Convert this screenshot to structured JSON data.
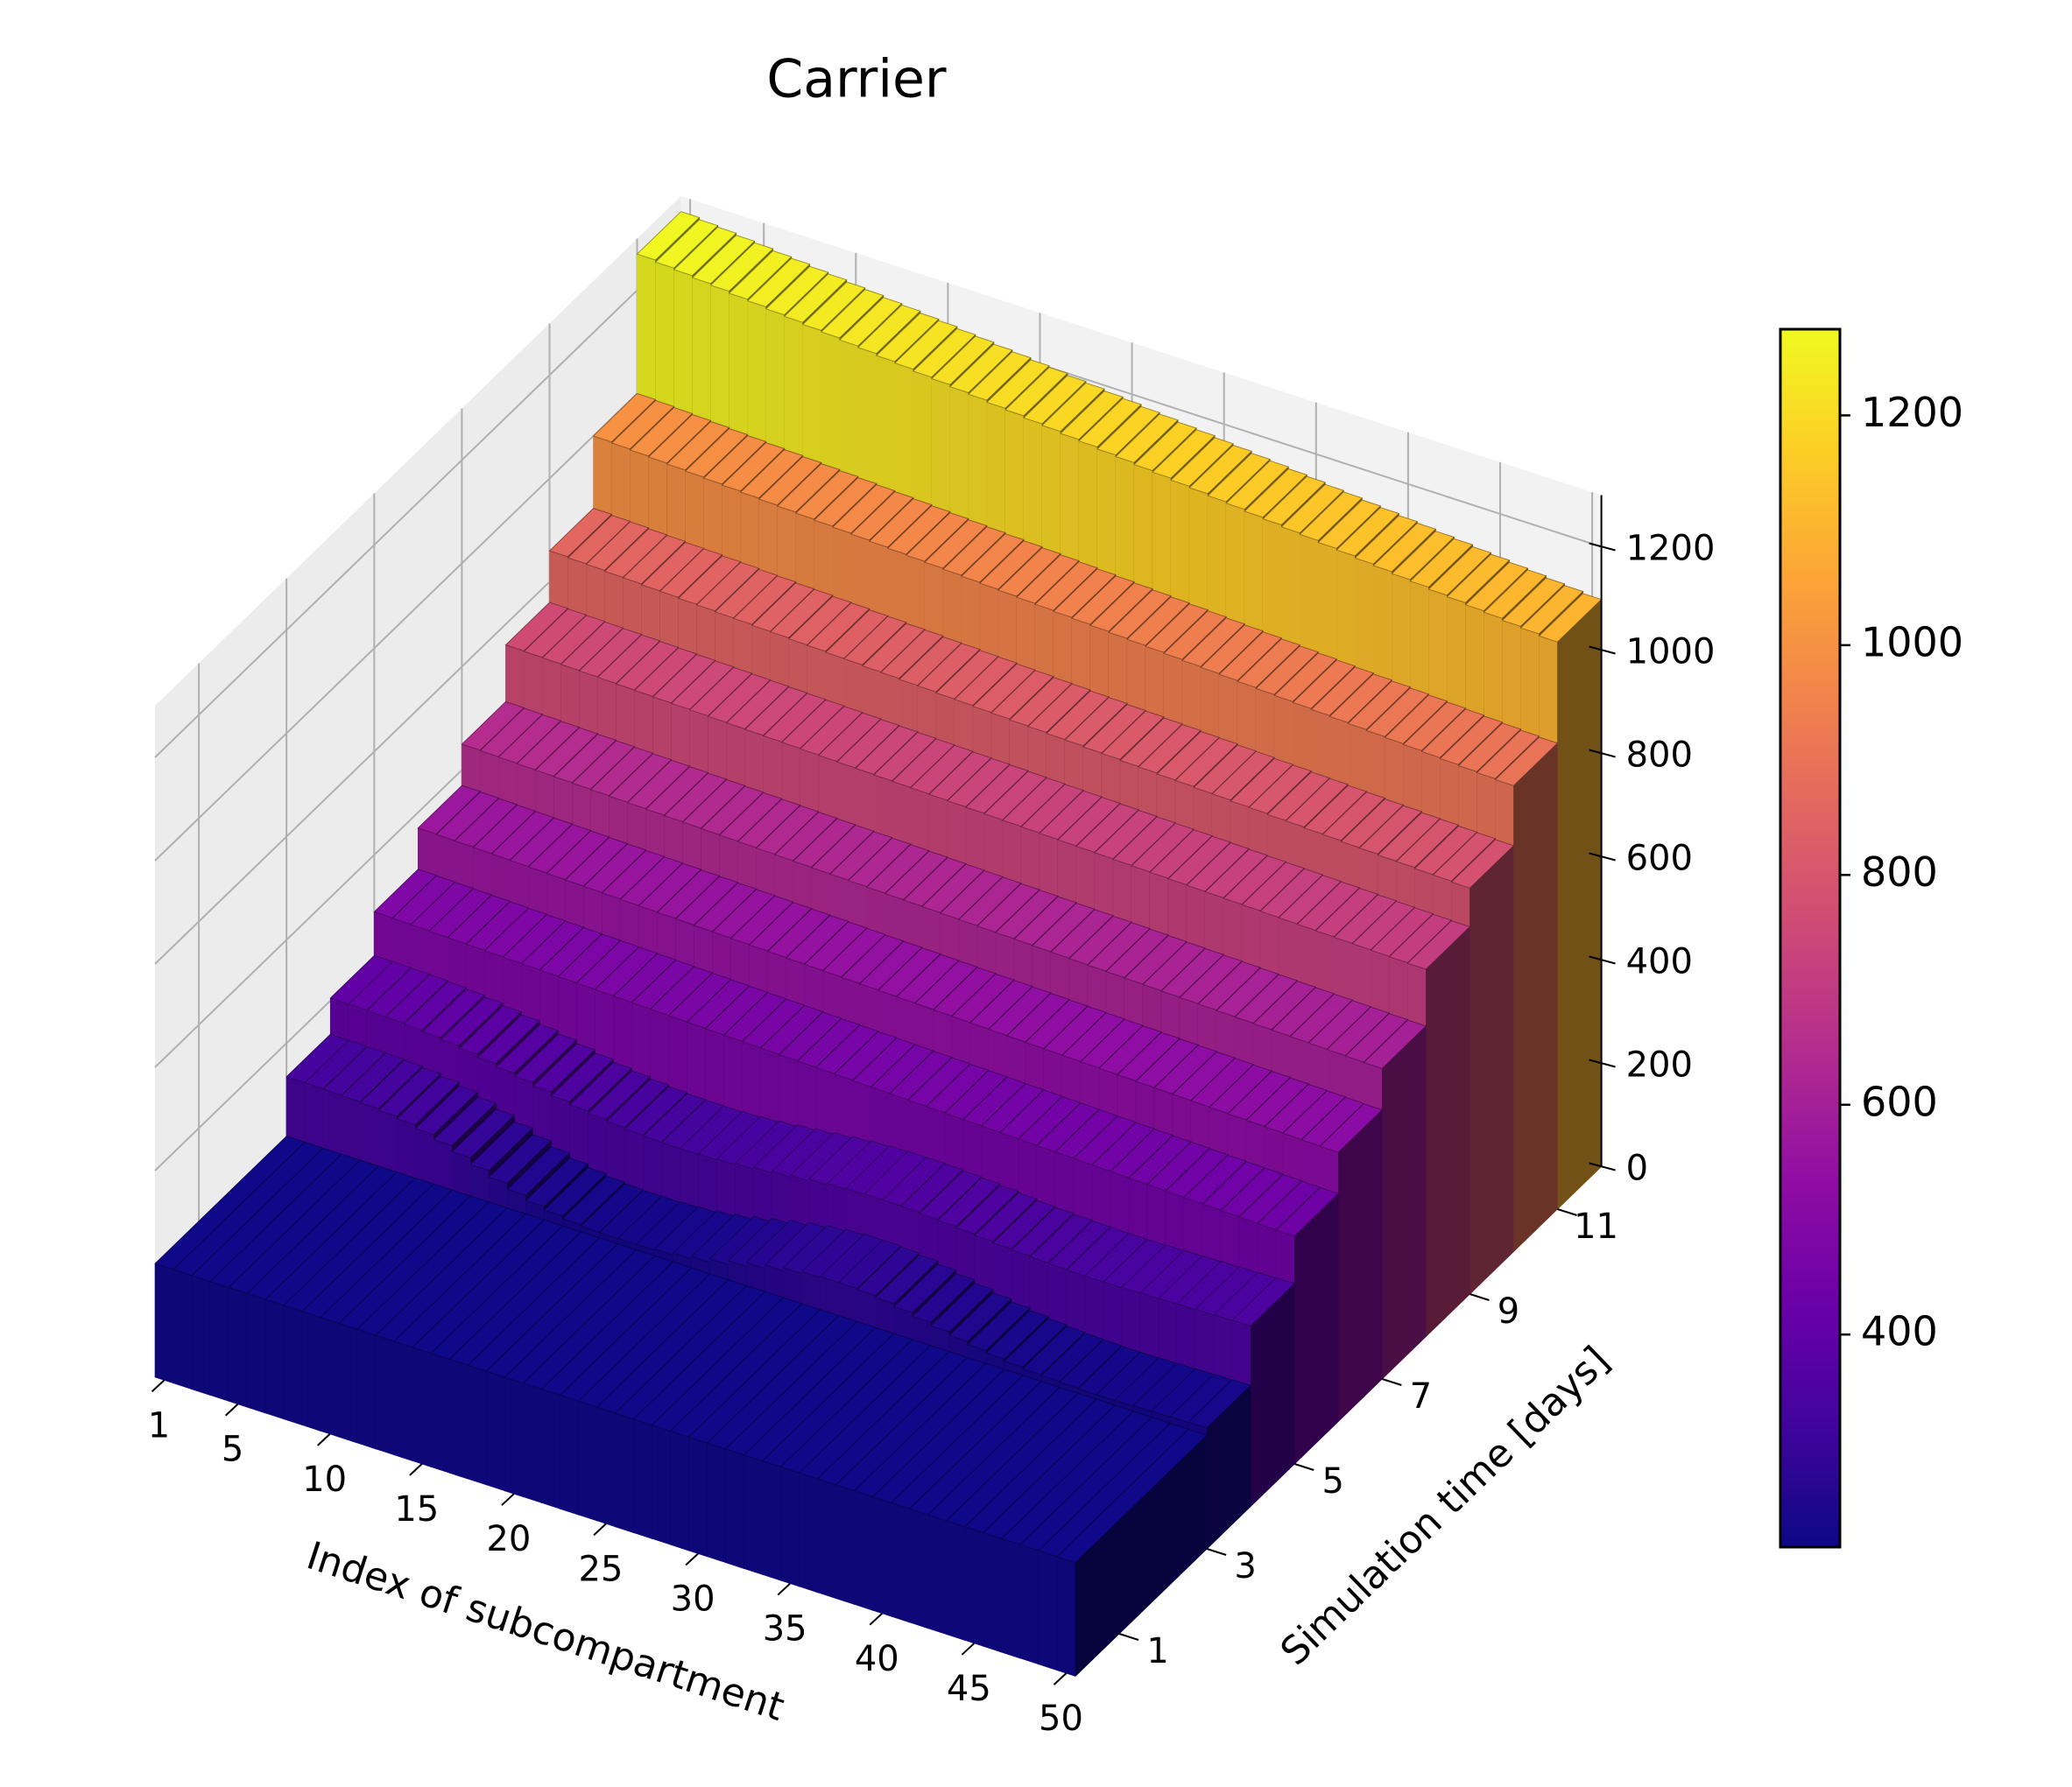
{
  "chart_data": {
    "type": "bar3d",
    "title": "Carrier",
    "x_label": "Index of subcompartment",
    "y_label": "Simulation time [days]",
    "x": [
      1,
      2,
      3,
      4,
      5,
      6,
      7,
      8,
      9,
      10,
      11,
      12,
      13,
      14,
      15,
      16,
      17,
      18,
      19,
      20,
      21,
      22,
      23,
      24,
      25,
      26,
      27,
      28,
      29,
      30,
      31,
      32,
      33,
      34,
      35,
      36,
      37,
      38,
      39,
      40,
      41,
      42,
      43,
      44,
      45,
      46,
      47,
      48,
      49,
      50
    ],
    "y": [
      0,
      3,
      4,
      5,
      6,
      7,
      8,
      9,
      10,
      11
    ],
    "values": [
      [
        220,
        220,
        220,
        220,
        220,
        220,
        220,
        220,
        220,
        220,
        220,
        220,
        220,
        220,
        220,
        220,
        220,
        220,
        220,
        220,
        220,
        220,
        220,
        220,
        220,
        220,
        220,
        220,
        220,
        220,
        220,
        220,
        220,
        220,
        220,
        220,
        220,
        220,
        220,
        220,
        220,
        220,
        220,
        220,
        220,
        220,
        220,
        220,
        220,
        220
      ],
      [
        335,
        335,
        334,
        333,
        331,
        328,
        323,
        316,
        306,
        294,
        281,
        268,
        256,
        246,
        239,
        234,
        231,
        230,
        230,
        231,
        233,
        237,
        242,
        249,
        257,
        265,
        272,
        278,
        282,
        284,
        284,
        282,
        278,
        272,
        265,
        258,
        251,
        245,
        240,
        236,
        233,
        231,
        230,
        229,
        229,
        230,
        231,
        232,
        233,
        234
      ],
      [
        405,
        405,
        404,
        403,
        401,
        398,
        394,
        389,
        383,
        376,
        369,
        362,
        355,
        349,
        344,
        340,
        337,
        335,
        334,
        334,
        335,
        337,
        340,
        344,
        348,
        352,
        356,
        359,
        361,
        362,
        362,
        361,
        359,
        357,
        354,
        351,
        348,
        346,
        344,
        343,
        342,
        342,
        342,
        343,
        344,
        345,
        346,
        347,
        348,
        349
      ],
      [
        490,
        489,
        488,
        487,
        486,
        485,
        484,
        483,
        482,
        481,
        480,
        479,
        478,
        477,
        476,
        475,
        474,
        473,
        472,
        471,
        470,
        469,
        468,
        467,
        466,
        465,
        464,
        463,
        462,
        461,
        460,
        459,
        458,
        457,
        456,
        455,
        454,
        453,
        452,
        451,
        450,
        449,
        448,
        447,
        446,
        445,
        444,
        443,
        442,
        441
      ],
      [
        570,
        569,
        568,
        567,
        566,
        565,
        564,
        563,
        562,
        561,
        560,
        559,
        558,
        557,
        556,
        555,
        554,
        553,
        552,
        551,
        550,
        549,
        548,
        547,
        546,
        545,
        544,
        543,
        542,
        541,
        540,
        539,
        538,
        537,
        536,
        535,
        534,
        533,
        532,
        531,
        530,
        529,
        528,
        527,
        526,
        525,
        524,
        523,
        522,
        521
      ],
      [
        650,
        649,
        648,
        647,
        646,
        645,
        644,
        643,
        642,
        641,
        640,
        639,
        638,
        637,
        636,
        635,
        634,
        633,
        632,
        631,
        630,
        629,
        628,
        627,
        626,
        625,
        624,
        623,
        622,
        621,
        620,
        619,
        618,
        617,
        616,
        615,
        614,
        613,
        612,
        611,
        610,
        609,
        608,
        607,
        606,
        605,
        604,
        603,
        602,
        601
      ],
      [
        760,
        759,
        758,
        757,
        756,
        755,
        754,
        753,
        752,
        751,
        750,
        749,
        748,
        747,
        746,
        745,
        744,
        743,
        742,
        741,
        740,
        739,
        738,
        737,
        736,
        735,
        734,
        733,
        732,
        731,
        730,
        729,
        728,
        727,
        726,
        725,
        724,
        723,
        722,
        721,
        720,
        719,
        718,
        717,
        716,
        715,
        714,
        713,
        712,
        711
      ],
      [
        860,
        858,
        857,
        855,
        854,
        852,
        851,
        849,
        848,
        846,
        845,
        843,
        842,
        840,
        839,
        837,
        836,
        834,
        833,
        831,
        830,
        828,
        827,
        825,
        824,
        822,
        821,
        819,
        818,
        816,
        815,
        813,
        812,
        810,
        809,
        807,
        806,
        804,
        803,
        801,
        800,
        798,
        797,
        795,
        794,
        792,
        791,
        789,
        788,
        786
      ],
      [
        1000,
        998,
        996,
        994,
        992,
        990,
        988,
        986,
        984,
        982,
        980,
        978,
        976,
        974,
        972,
        970,
        968,
        966,
        964,
        962,
        960,
        958,
        956,
        954,
        952,
        950,
        948,
        946,
        944,
        942,
        940,
        938,
        936,
        934,
        932,
        930,
        928,
        926,
        924,
        922,
        920,
        918,
        916,
        914,
        912,
        910,
        908,
        906,
        904,
        902
      ],
      [
        1270,
        1266,
        1263,
        1259,
        1256,
        1252,
        1249,
        1245,
        1242,
        1238,
        1235,
        1231,
        1228,
        1224,
        1221,
        1217,
        1214,
        1210,
        1207,
        1203,
        1200,
        1196,
        1193,
        1189,
        1186,
        1182,
        1179,
        1175,
        1172,
        1168,
        1165,
        1161,
        1158,
        1154,
        1151,
        1147,
        1144,
        1140,
        1137,
        1133,
        1130,
        1126,
        1123,
        1119,
        1116,
        1112,
        1109,
        1105,
        1102,
        1098
      ]
    ],
    "xlim": [
      0.5,
      50.5
    ],
    "xticks": [
      1,
      5,
      10,
      15,
      20,
      25,
      30,
      35,
      40,
      45,
      50
    ],
    "ylim": [
      0,
      12
    ],
    "yticks": [
      1,
      3,
      5,
      7,
      9,
      11
    ],
    "zlim": [
      0,
      1300
    ],
    "zticks": [
      0,
      200,
      400,
      600,
      800,
      1000,
      1200
    ],
    "grid": true,
    "colormap": "plasma",
    "colorbar": {
      "lim": [
        215,
        1275
      ],
      "ticks": [
        400,
        600,
        800,
        1000,
        1200
      ]
    }
  }
}
